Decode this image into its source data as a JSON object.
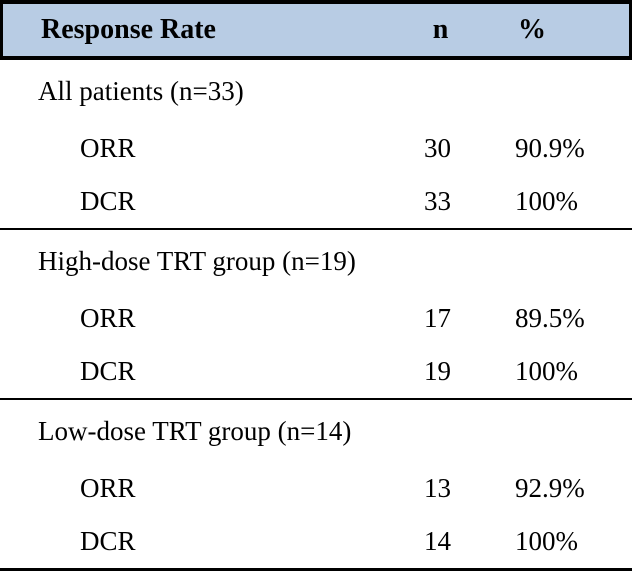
{
  "table": {
    "header": {
      "label": "Response Rate",
      "n": "n",
      "pct": "%"
    },
    "sections": [
      {
        "group": "All patients (n=33)",
        "rows": [
          {
            "metric": "ORR",
            "n": "30",
            "pct": "90.9%"
          },
          {
            "metric": "DCR",
            "n": "33",
            "pct": "100%"
          }
        ]
      },
      {
        "group": "High-dose TRT group (n=19)",
        "rows": [
          {
            "metric": "ORR",
            "n": "17",
            "pct": "89.5%"
          },
          {
            "metric": "DCR",
            "n": "19",
            "pct": "100%"
          }
        ]
      },
      {
        "group": "Low-dose TRT group (n=14)",
        "rows": [
          {
            "metric": "ORR",
            "n": "13",
            "pct": "92.9%"
          },
          {
            "metric": "DCR",
            "n": "14",
            "pct": "100%"
          }
        ]
      }
    ]
  },
  "colors": {
    "header_bg": "#b8cce4",
    "border": "#000000"
  }
}
